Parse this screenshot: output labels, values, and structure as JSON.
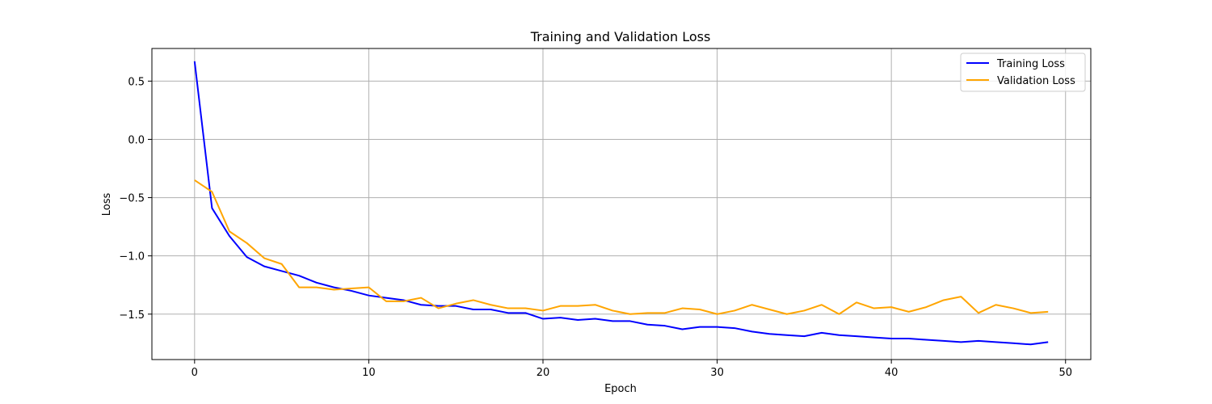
{
  "chart_data": {
    "type": "line",
    "title": "Training and Validation Loss",
    "xlabel": "Epoch",
    "ylabel": "Loss",
    "xlim": [
      -2.45,
      51.45
    ],
    "ylim": [
      -1.89,
      0.78
    ],
    "xticks": [
      0,
      10,
      20,
      30,
      40,
      50
    ],
    "yticks": [
      0.5,
      0.0,
      -0.5,
      -1.0,
      -1.5
    ],
    "ytick_labels": [
      "0.5",
      "0.0",
      "−0.5",
      "−1.0",
      "−1.5"
    ],
    "grid": true,
    "legend_position": "top-right",
    "x": [
      0,
      1,
      2,
      3,
      4,
      5,
      6,
      7,
      8,
      9,
      10,
      11,
      12,
      13,
      14,
      15,
      16,
      17,
      18,
      19,
      20,
      21,
      22,
      23,
      24,
      25,
      26,
      27,
      28,
      29,
      30,
      31,
      32,
      33,
      34,
      35,
      36,
      37,
      38,
      39,
      40,
      41,
      42,
      43,
      44,
      45,
      46,
      47,
      48,
      49
    ],
    "series": [
      {
        "name": "Training Loss",
        "color": "#0000ff",
        "values": [
          0.67,
          -0.59,
          -0.83,
          -1.01,
          -1.09,
          -1.13,
          -1.17,
          -1.23,
          -1.27,
          -1.3,
          -1.34,
          -1.36,
          -1.38,
          -1.42,
          -1.43,
          -1.43,
          -1.46,
          -1.46,
          -1.49,
          -1.49,
          -1.54,
          -1.53,
          -1.55,
          -1.54,
          -1.56,
          -1.56,
          -1.59,
          -1.6,
          -1.63,
          -1.61,
          -1.61,
          -1.62,
          -1.65,
          -1.67,
          -1.68,
          -1.69,
          -1.66,
          -1.68,
          -1.69,
          -1.7,
          -1.71,
          -1.71,
          -1.72,
          -1.73,
          -1.74,
          -1.73,
          -1.74,
          -1.75,
          -1.76,
          -1.74
        ]
      },
      {
        "name": "Validation Loss",
        "color": "#ffa500",
        "values": [
          -0.35,
          -0.45,
          -0.79,
          -0.89,
          -1.02,
          -1.07,
          -1.27,
          -1.27,
          -1.29,
          -1.28,
          -1.27,
          -1.39,
          -1.39,
          -1.36,
          -1.45,
          -1.41,
          -1.38,
          -1.42,
          -1.45,
          -1.45,
          -1.47,
          -1.43,
          -1.43,
          -1.42,
          -1.47,
          -1.5,
          -1.49,
          -1.49,
          -1.45,
          -1.46,
          -1.5,
          -1.47,
          -1.42,
          -1.46,
          -1.5,
          -1.47,
          -1.42,
          -1.5,
          -1.4,
          -1.45,
          -1.44,
          -1.48,
          -1.44,
          -1.38,
          -1.35,
          -1.49,
          -1.42,
          -1.45,
          -1.49,
          -1.48
        ]
      }
    ]
  }
}
